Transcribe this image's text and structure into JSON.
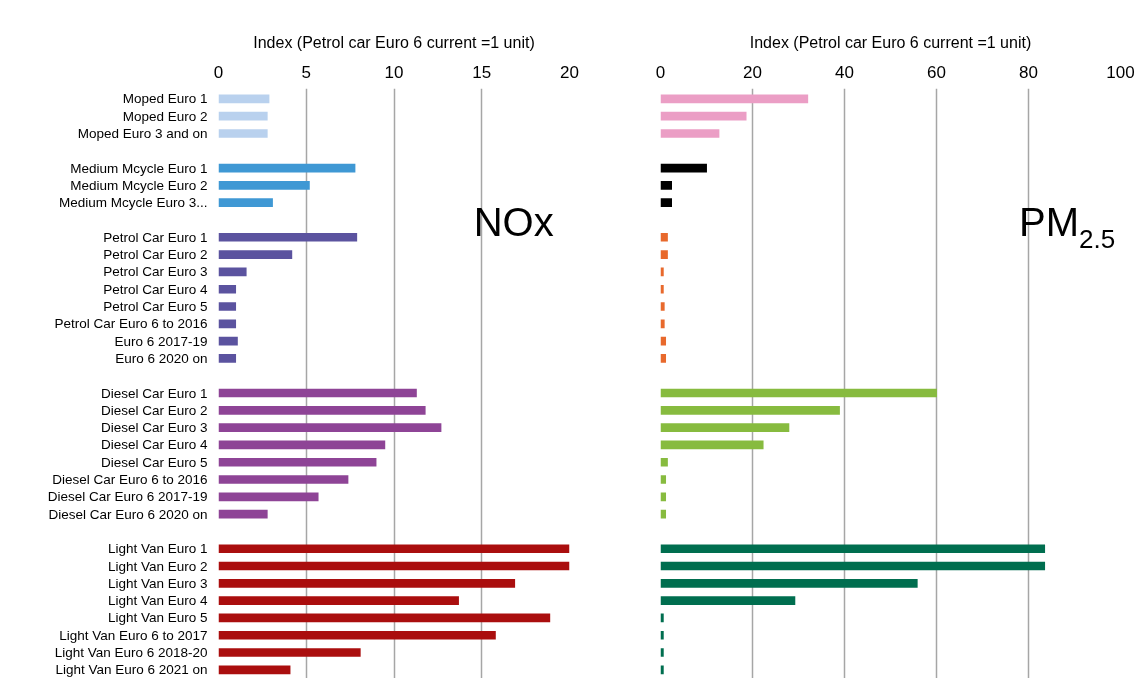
{
  "chart_data": [
    {
      "type": "bar",
      "orientation": "horizontal",
      "xlabel": "Index (Petrol car Euro 6 current =1 unit)",
      "xlim": [
        0,
        20
      ],
      "xticks": [
        0,
        5,
        10,
        15,
        20
      ],
      "grid": "x",
      "annotations": [
        "NOx"
      ],
      "categories": [
        "Moped Euro 1",
        "Moped Euro 2",
        "Moped Euro 3 and on",
        null,
        "Medium Mcycle Euro 1",
        "Medium Mcycle Euro 2",
        "Medium Mcycle Euro 3...",
        null,
        "Petrol Car Euro 1",
        "Petrol Car Euro 2",
        "Petrol Car Euro 3",
        "Petrol Car Euro 4",
        "Petrol Car Euro 5",
        "Petrol Car Euro 6 to 2016",
        "Euro 6 2017-19",
        "Euro 6 2020 on",
        null,
        "Diesel Car Euro 1",
        "Diesel Car Euro 2",
        "Diesel Car Euro 3",
        "Diesel Car Euro 4",
        "Diesel Car Euro 5",
        "Diesel Car Euro 6 to 2016",
        "Diesel Car Euro 6 2017-19",
        "Diesel Car Euro 6 2020 on",
        null,
        "Light Van Euro 1",
        "Light Van Euro 2",
        "Light Van Euro 3",
        "Light Van Euro 4",
        "Light Van Euro 5",
        "Light Van Euro 6 to 2017",
        "Light Van Euro 6 2018-20",
        "Light Van Euro 6 2021 on"
      ],
      "values": [
        2.9,
        2.8,
        2.8,
        null,
        7.8,
        5.2,
        3.1,
        null,
        7.9,
        4.2,
        1.6,
        1.0,
        1.0,
        1.0,
        1.1,
        1.0,
        null,
        11.3,
        11.8,
        12.7,
        9.5,
        9.0,
        7.4,
        5.7,
        2.8,
        null,
        20,
        20,
        16.9,
        13.7,
        18.9,
        15.8,
        8.1,
        4.1
      ],
      "colors": [
        "#b9d1ee",
        "#b9d1ee",
        "#b9d1ee",
        null,
        "#3f98d4",
        "#3f98d4",
        "#3f98d4",
        null,
        "#5b539f",
        "#5b539f",
        "#5b539f",
        "#5b539f",
        "#5b539f",
        "#5b539f",
        "#5b539f",
        "#5b539f",
        null,
        "#8e4496",
        "#8e4496",
        "#8e4496",
        "#8e4496",
        "#8e4496",
        "#8e4496",
        "#8e4496",
        "#8e4496",
        null,
        "#aa0e0e",
        "#aa0e0e",
        "#aa0e0e",
        "#aa0e0e",
        "#aa0e0e",
        "#aa0e0e",
        "#aa0e0e",
        "#aa0e0e"
      ]
    },
    {
      "type": "bar",
      "orientation": "horizontal",
      "xlabel": "Index (Petrol car Euro 6 current =1 unit)",
      "xlim": [
        0,
        100
      ],
      "xticks": [
        0,
        20,
        40,
        60,
        80,
        100
      ],
      "grid": "x",
      "annotations": [
        "PM$_{2.5}$"
      ],
      "tick_labels": "x",
      "categories": [
        null,
        null,
        null,
        null,
        null,
        null,
        null,
        null,
        null,
        null,
        null,
        null,
        null,
        null,
        null,
        null,
        null,
        null,
        null,
        null,
        null,
        null,
        null,
        null,
        null,
        null,
        null,
        null,
        null,
        null,
        null,
        null,
        null,
        null
      ],
      "values": [
        32.1,
        18.7,
        12.8,
        null,
        10.1,
        2.5,
        2.5,
        null,
        1.6,
        1.6,
        0.7,
        0.7,
        0.9,
        0.9,
        1.2,
        1.2,
        null,
        60.1,
        39.0,
        28.0,
        22.4,
        1.6,
        1.2,
        1.2,
        1.2,
        null,
        83.6,
        83.6,
        55.9,
        29.3,
        0.7,
        0.7,
        0.7,
        0.7
      ],
      "colors": [
        "#eb9ec5",
        "#eb9ec5",
        "#eb9ec5",
        null,
        "#000000",
        "#000000",
        "#000000",
        null,
        "#e8692c",
        "#e8692c",
        "#e8692c",
        "#e8692c",
        "#e8692c",
        "#e8692c",
        "#e8692c",
        "#e8692c",
        null,
        "#87bb3f",
        "#87bb3f",
        "#87bb3f",
        "#87bb3f",
        "#87bb3f",
        "#87bb3f",
        "#87bb3f",
        "#87bb3f",
        null,
        "#006e4f",
        "#006e4f",
        "#006e4f",
        "#006e4f",
        "#006e4f",
        "#006e4f",
        "#006e4f",
        "#006e4f"
      ]
    }
  ]
}
